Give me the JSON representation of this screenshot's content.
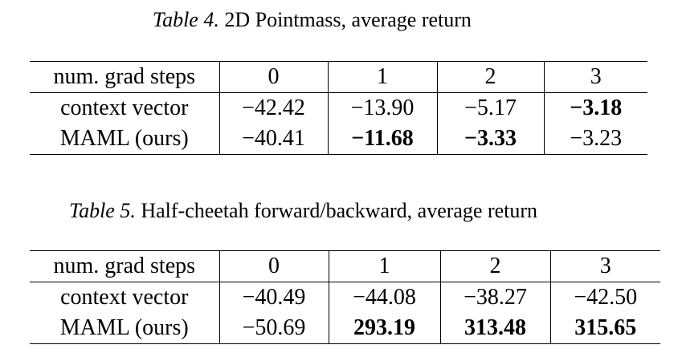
{
  "tables": [
    {
      "caption_label": "Table 4.",
      "caption_text": "2D Pointmass, average return",
      "header": [
        "num. grad steps",
        "0",
        "1",
        "2",
        "3"
      ],
      "rows": [
        {
          "cells": [
            "context vector",
            "−42.42",
            "−13.90",
            "−5.17",
            "−3.18"
          ],
          "bold": [
            false,
            false,
            false,
            false,
            true
          ]
        },
        {
          "cells": [
            "MAML (ours)",
            "−40.41",
            "−11.68",
            "−3.33",
            "−3.23"
          ],
          "bold": [
            false,
            false,
            true,
            true,
            false
          ]
        }
      ]
    },
    {
      "caption_label": "Table 5.",
      "caption_text": "Half-cheetah forward/backward, average return",
      "header": [
        "num. grad steps",
        "0",
        "1",
        "2",
        "3"
      ],
      "rows": [
        {
          "cells": [
            "context vector",
            "−40.49",
            "−44.08",
            "−38.27",
            "−42.50"
          ],
          "bold": [
            false,
            false,
            false,
            false,
            false
          ]
        },
        {
          "cells": [
            "MAML (ours)",
            "−50.69",
            "293.19",
            "313.48",
            "315.65"
          ],
          "bold": [
            false,
            false,
            true,
            true,
            true
          ]
        }
      ]
    }
  ]
}
